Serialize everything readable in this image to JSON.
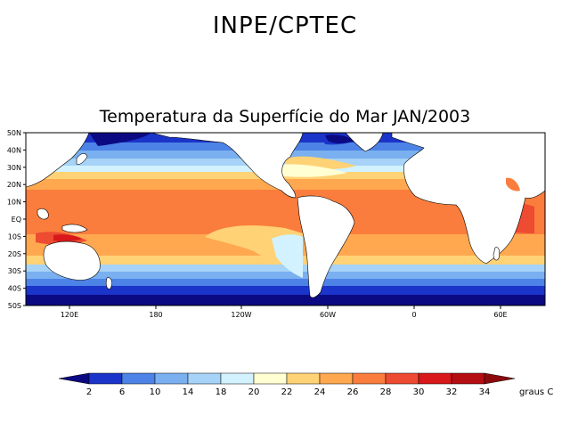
{
  "header": {
    "organization": "INPE/CPTEC",
    "title": "Temperatura da Superfície do Mar JAN/2003"
  },
  "map": {
    "lat_labels": [
      "50N",
      "40N",
      "30N",
      "20N",
      "10N",
      "EQ",
      "10S",
      "20S",
      "30S",
      "40S",
      "50S"
    ],
    "lon_labels": [
      "120E",
      "180",
      "120W",
      "60W",
      "0",
      "60E"
    ],
    "palette": [
      "#0b0a83",
      "#1b34c9",
      "#4d83e6",
      "#7ab0f0",
      "#a6d3f7",
      "#d2f2ff",
      "#ffffd2",
      "#ffd276",
      "#ffa84f",
      "#fa7d3d",
      "#ed4b32",
      "#d8181a",
      "#b40d12",
      "#8c0a0e"
    ]
  },
  "colorbar": {
    "values": [
      "2",
      "6",
      "10",
      "14",
      "18",
      "20",
      "22",
      "24",
      "26",
      "28",
      "30",
      "32",
      "34"
    ],
    "unit": "graus C",
    "colors": [
      "#0b0a83",
      "#1b34c9",
      "#4d83e6",
      "#7ab0f0",
      "#a6d3f7",
      "#d2f2ff",
      "#ffffd2",
      "#ffd276",
      "#ffa84f",
      "#fa7d3d",
      "#ed4b32",
      "#d8181a",
      "#b40d12",
      "#8c0a0e"
    ]
  }
}
